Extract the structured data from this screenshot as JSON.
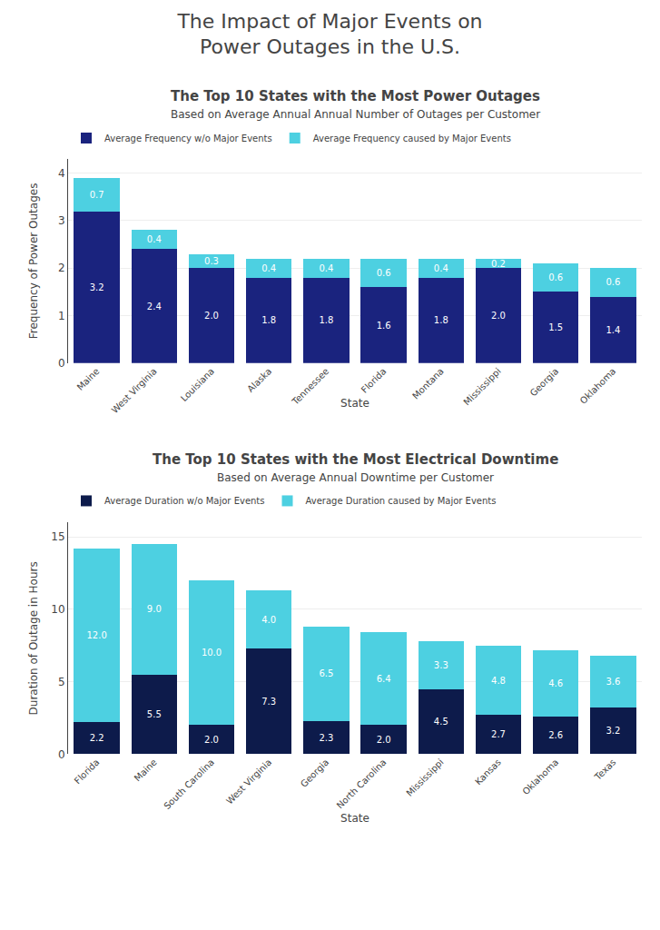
{
  "title": [
    "The Impact of Major Events on",
    "Power Outages in the U.S."
  ],
  "chart_data": [
    {
      "type": "bar",
      "stacked": true,
      "grid": true,
      "data_labels": true,
      "legend": "upper left",
      "title": "The Top 10 States with the Most Power Outages",
      "subtitle": "Based on Average Annual Annual Number of Outages per Customer",
      "xlabel": "State",
      "ylabel": "Frequency of Power Outages",
      "categories": [
        "Maine",
        "West Virginia",
        "Louisiana",
        "Alaska",
        "Tennessee",
        "Florida",
        "Montana",
        "Mississippi",
        "Georgia",
        "Oklahoma"
      ],
      "series": [
        {
          "name": "Average Frequency w/o Major Events",
          "color": "#1a237e",
          "values": [
            3.2,
            2.4,
            2.0,
            1.8,
            1.8,
            1.6,
            1.8,
            2.0,
            1.5,
            1.4
          ],
          "value_labels": [
            "3.2",
            "2.4",
            "2.0",
            "1.8",
            "1.8",
            "1.6",
            "1.8",
            "2.0",
            "1.5",
            "1.4"
          ]
        },
        {
          "name": "Average Frequency caused by Major Events",
          "color": "#4dd0e1",
          "values": [
            0.7,
            0.4,
            0.3,
            0.4,
            0.4,
            0.6,
            0.4,
            0.2,
            0.6,
            0.6
          ],
          "value_labels": [
            "0.7",
            "0.4",
            "0.3",
            "0.4",
            "0.4",
            "0.6",
            "0.4",
            "0.2",
            "0.6",
            "0.6"
          ]
        }
      ],
      "ylim": [
        0,
        4.3
      ],
      "yticks": [
        0,
        1,
        2,
        3,
        4
      ]
    },
    {
      "type": "bar",
      "stacked": true,
      "grid": true,
      "data_labels": true,
      "legend": "upper left",
      "title": "The Top 10 States with the Most Electrical Downtime",
      "subtitle": "Based on Average Annual Downtime per Customer",
      "xlabel": "State",
      "ylabel": "Duration of Outage in Hours",
      "categories": [
        "Florida",
        "Maine",
        "South Carolina",
        "West Virginia",
        "Georgia",
        "North Carolina",
        "Mississippi",
        "Kansas",
        "Oklahoma",
        "Texas"
      ],
      "series": [
        {
          "name": "Average Duration w/o Major Events",
          "color": "#0d1b4b",
          "values": [
            2.2,
            5.5,
            2.0,
            7.3,
            2.3,
            2.0,
            4.5,
            2.7,
            2.6,
            3.2
          ],
          "value_labels": [
            "2.2",
            "5.5",
            "2.0",
            "7.3",
            "2.3",
            "2.0",
            "4.5",
            "2.7",
            "2.6",
            "3.2"
          ]
        },
        {
          "name": "Average Duration caused by Major Events",
          "color": "#4dd0e1",
          "values": [
            12.0,
            9.0,
            10.0,
            4.0,
            6.5,
            6.4,
            3.3,
            4.8,
            4.6,
            3.6
          ],
          "value_labels": [
            "12.0",
            "9.0",
            "10.0",
            "4.0",
            "6.5",
            "6.4",
            "3.3",
            "4.8",
            "4.6",
            "3.6"
          ]
        }
      ],
      "ylim": [
        0,
        16
      ],
      "yticks": [
        0,
        5,
        10,
        15
      ]
    }
  ]
}
